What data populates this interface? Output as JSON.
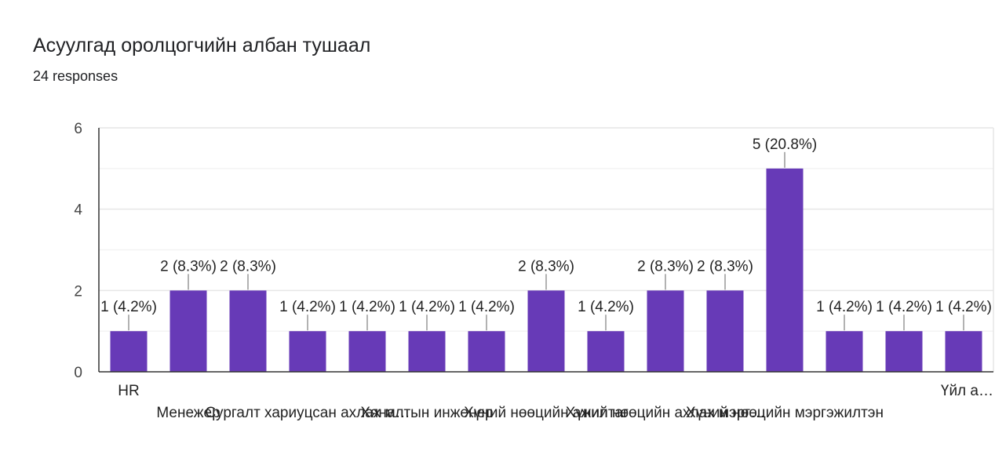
{
  "title": "Асуулгад оролцогчийн албан тушаал",
  "subtitle": "24 responses",
  "chart_data": {
    "type": "bar",
    "bar_color": "#673ab7",
    "ylim": [
      0,
      6
    ],
    "yticks": [
      0,
      2,
      4,
      6
    ],
    "grid": true,
    "categories": [
      "HR",
      "Менежер",
      "",
      "Сургалт хариуцсан ахлах м…",
      "",
      "Хяналтын инженер",
      "",
      "Хүний нөөцийн ажилтаг",
      "",
      "Хүний нөөцийн ахлах мэрг…",
      "",
      "Хүний нөөцийн мэргэжилтэн",
      "",
      "",
      "Үйл а…"
    ],
    "values": [
      1,
      2,
      2,
      1,
      1,
      1,
      1,
      2,
      1,
      2,
      2,
      5,
      1,
      1,
      1
    ],
    "data_labels": [
      "1 (4.2%)",
      "2 (8.3%)",
      "2 (8.3%)",
      "1 (4.2%)",
      "1 (4.2%)",
      "1 (4.2%)",
      "1 (4.2%)",
      "2 (8.3%)",
      "1 (4.2%)",
      "2 (8.3%)",
      "2 (8.3%)",
      "5 (20.8%)",
      "1 (4.2%)",
      "1 (4.2%)",
      "1 (4.2%)"
    ]
  }
}
